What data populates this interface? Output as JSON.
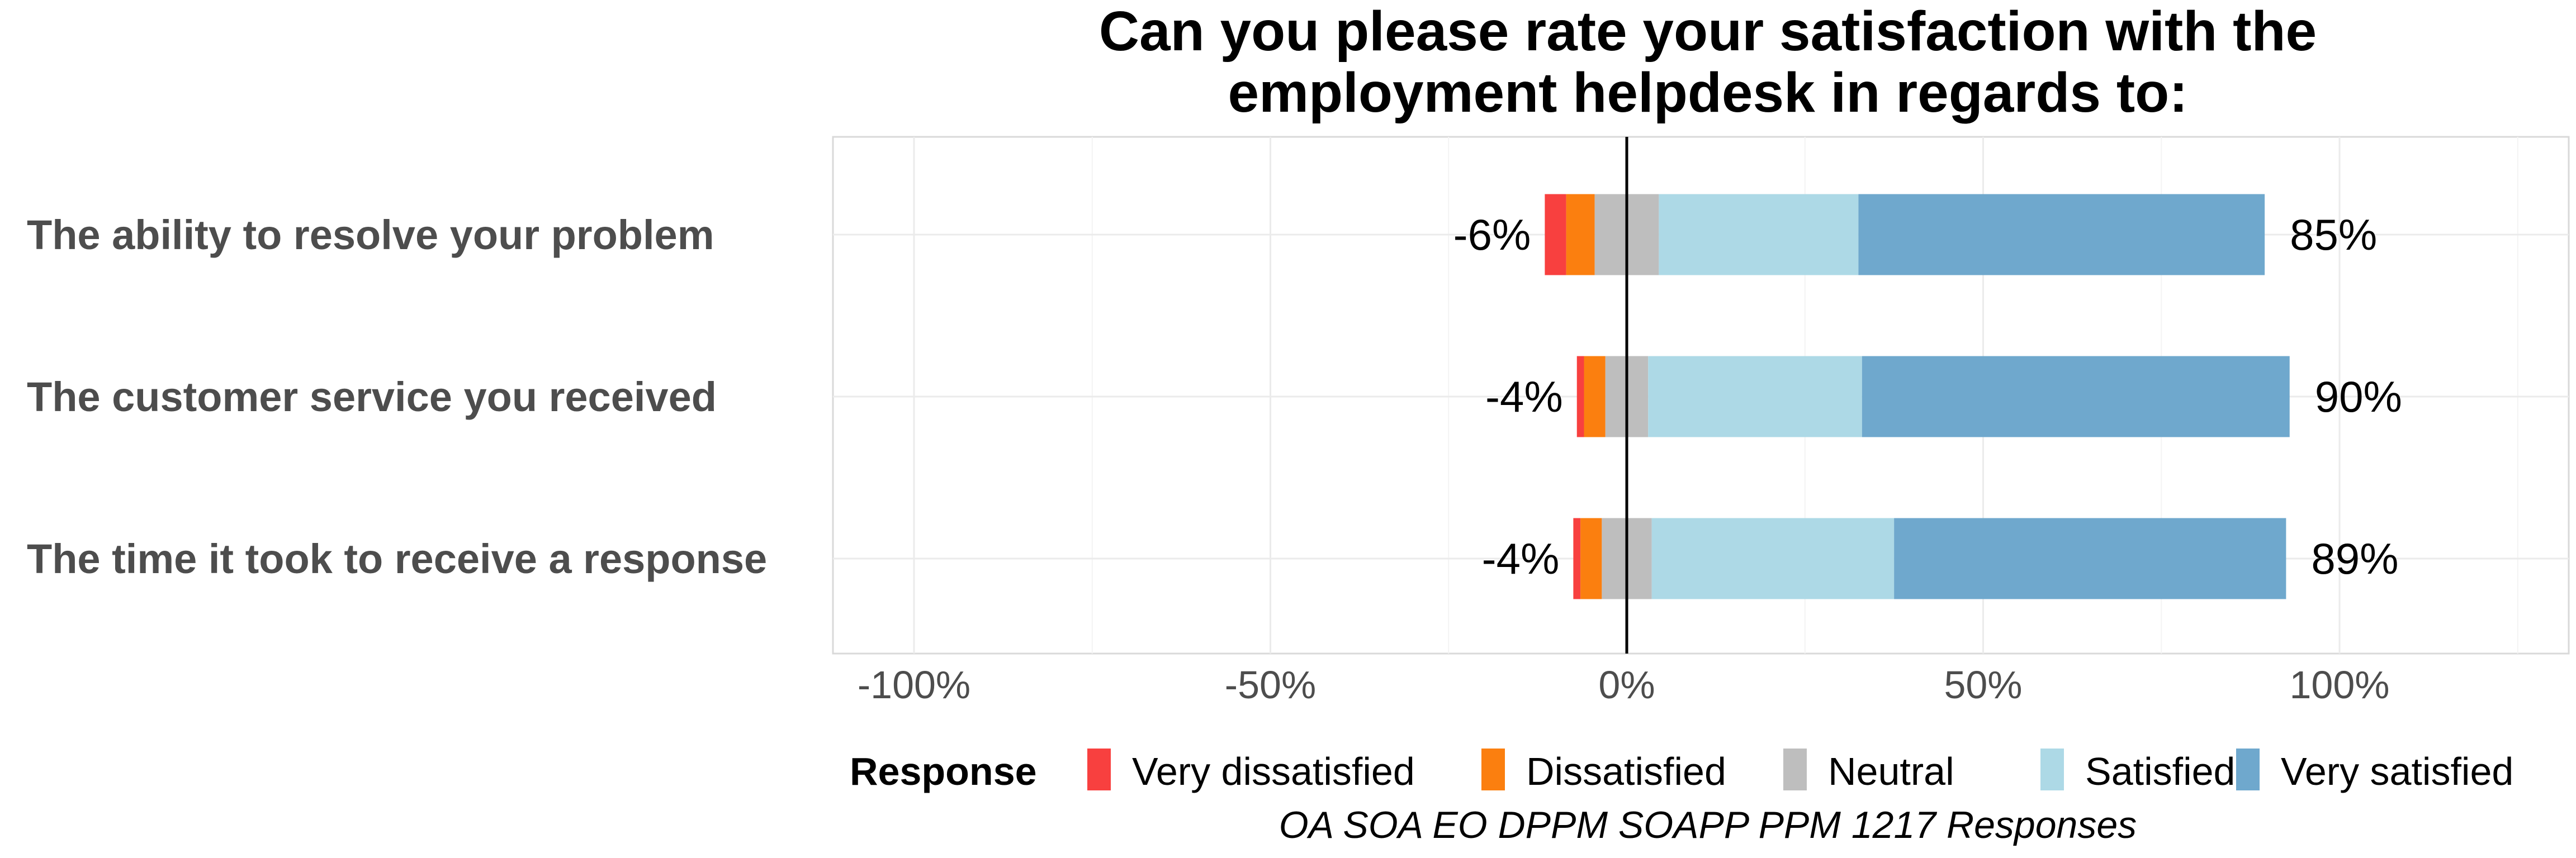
{
  "chart_data": {
    "type": "bar",
    "orientation": "horizontal",
    "stacked": "diverging",
    "title": "Can you please rate your satisfaction with the employment helpdesk in regards to:",
    "title_lines": [
      "Can you please rate your satisfaction with the",
      "employment helpdesk in regards to:"
    ],
    "caption": "OA SOA EO DPPM SOAPP PPM 1217 Responses",
    "categories": [
      "The ability to resolve your problem",
      "The customer service you received",
      "The time it took to receive a response"
    ],
    "xlim": [
      -110,
      125
    ],
    "xticks": [
      -100,
      -50,
      0,
      50,
      100
    ],
    "xtick_labels": [
      "-100%",
      "-50%",
      "0%",
      "50%",
      "100%"
    ],
    "grid": true,
    "legend": {
      "title": "Response",
      "position": "bottom"
    },
    "series": [
      {
        "name": "Very dissatisfied",
        "color": "#f8403f",
        "values": [
          3,
          1,
          1
        ]
      },
      {
        "name": "Dissatisfied",
        "color": "#fb7f0f",
        "values": [
          4,
          3,
          3
        ]
      },
      {
        "name": "Neutral",
        "color": "#bebebe",
        "values": [
          9,
          6,
          7
        ]
      },
      {
        "name": "Satisfied",
        "color": "#add9e6",
        "values": [
          28,
          30,
          34
        ]
      },
      {
        "name": "Very satisfied",
        "color": "#6fa8cd",
        "values": [
          57,
          60,
          55
        ]
      }
    ],
    "neg_labels": [
      "-6%",
      "-4%",
      "-4%"
    ],
    "pos_labels": [
      "85%",
      "90%",
      "89%"
    ]
  }
}
